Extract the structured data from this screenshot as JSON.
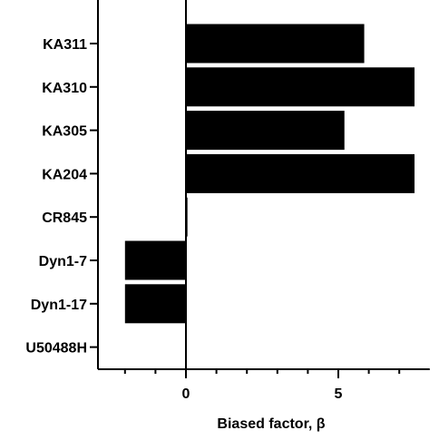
{
  "chart_data": {
    "type": "bar",
    "orientation": "horizontal",
    "categories": [
      "KA311",
      "KA310",
      "KA305",
      "KA204",
      "CR845",
      "Dyn1-7",
      "Dyn1-17",
      "U50488H"
    ],
    "values": [
      5.85,
      7.5,
      5.2,
      7.5,
      0.05,
      -2.0,
      -2.0,
      0
    ],
    "xlabel": "Biased factor, β",
    "ylabel": "",
    "xlim": [
      -3,
      8
    ],
    "xticks": [
      0,
      5
    ],
    "xtick_labels": [
      "0",
      "5"
    ],
    "minor_xticks": [
      -2,
      -1,
      1,
      2,
      3,
      4,
      6,
      7
    ],
    "bar_color": "#000000",
    "grid": false,
    "legend": "none"
  }
}
